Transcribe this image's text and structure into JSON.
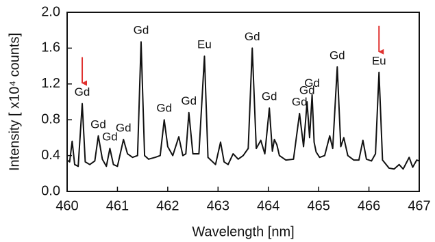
{
  "chart_data": {
    "type": "line",
    "xlabel": "Wavelength [nm]",
    "ylabel": "Intensity [ x10⁴ counts]",
    "color": "#111111",
    "x": [
      460.0,
      460.05,
      460.1,
      460.15,
      460.22,
      460.3,
      460.36,
      460.45,
      460.55,
      460.62,
      460.7,
      460.78,
      460.85,
      460.92,
      461.0,
      461.12,
      461.2,
      461.3,
      461.4,
      461.47,
      461.54,
      461.62,
      461.75,
      461.85,
      461.93,
      462.0,
      462.1,
      462.22,
      462.3,
      462.36,
      462.42,
      462.5,
      462.62,
      462.73,
      462.8,
      462.95,
      463.05,
      463.12,
      463.2,
      463.3,
      463.4,
      463.5,
      463.6,
      463.68,
      463.76,
      463.85,
      463.93,
      464.02,
      464.08,
      464.12,
      464.17,
      464.22,
      464.35,
      464.5,
      464.62,
      464.7,
      464.77,
      464.82,
      464.87,
      464.91,
      464.95,
      465.02,
      465.12,
      465.22,
      465.28,
      465.37,
      465.44,
      465.5,
      465.58,
      465.7,
      465.8,
      465.88,
      465.95,
      466.05,
      466.13,
      466.2,
      466.27,
      466.4,
      466.5,
      466.6,
      466.68,
      466.8,
      466.87,
      466.95,
      467.0
    ],
    "values": [
      0.35,
      0.33,
      0.56,
      0.3,
      0.28,
      0.98,
      0.33,
      0.3,
      0.34,
      0.62,
      0.36,
      0.28,
      0.48,
      0.3,
      0.28,
      0.58,
      0.42,
      0.38,
      0.4,
      1.67,
      0.4,
      0.36,
      0.38,
      0.4,
      0.8,
      0.5,
      0.4,
      0.61,
      0.4,
      0.42,
      0.88,
      0.42,
      0.42,
      1.51,
      0.38,
      0.3,
      0.55,
      0.33,
      0.3,
      0.42,
      0.36,
      0.4,
      0.48,
      1.6,
      0.48,
      0.57,
      0.42,
      0.93,
      0.45,
      0.58,
      0.52,
      0.4,
      0.35,
      0.36,
      0.87,
      0.5,
      1.0,
      0.6,
      1.08,
      0.55,
      0.44,
      0.38,
      0.4,
      0.62,
      0.48,
      1.39,
      0.5,
      0.6,
      0.4,
      0.35,
      0.35,
      0.57,
      0.36,
      0.34,
      0.42,
      1.33,
      0.35,
      0.26,
      0.25,
      0.3,
      0.25,
      0.38,
      0.27,
      0.35,
      0.34
    ],
    "xlim": [
      460,
      467
    ],
    "ylim": [
      0,
      2
    ],
    "xticks": [
      460,
      461,
      462,
      463,
      464,
      465,
      466,
      467
    ],
    "yticks": [
      {
        "value": 0,
        "label": "0.0"
      },
      {
        "value": 0.4,
        "label": "0.4"
      },
      {
        "value": 0.8,
        "label": "0.8"
      },
      {
        "value": 1.2,
        "label": "1.2"
      },
      {
        "value": 1.6,
        "label": "1.6"
      },
      {
        "value": 2.0,
        "label": "2.0"
      }
    ],
    "annotations": [
      {
        "text": "Gd",
        "x": 460.3
      },
      {
        "text": "Gd",
        "x": 460.62
      },
      {
        "text": "Gd",
        "x": 460.85
      },
      {
        "text": "Gd",
        "x": 461.12
      },
      {
        "text": "Gd",
        "x": 461.47
      },
      {
        "text": "Gd",
        "x": 461.93
      },
      {
        "text": "Gd",
        "x": 462.42
      },
      {
        "text": "Eu",
        "x": 462.73
      },
      {
        "text": "Gd",
        "x": 463.68
      },
      {
        "text": "Gd",
        "x": 464.02
      },
      {
        "text": "Gd",
        "x": 464.62
      },
      {
        "text": "Gd",
        "x": 464.77
      },
      {
        "text": "Gd",
        "x": 464.87
      },
      {
        "text": "Gd",
        "x": 465.37
      },
      {
        "text": "Eu",
        "x": 466.2
      }
    ],
    "arrows": [
      {
        "x": 460.3,
        "color": "#e0312f"
      },
      {
        "x": 466.2,
        "color": "#e0312f"
      }
    ]
  }
}
